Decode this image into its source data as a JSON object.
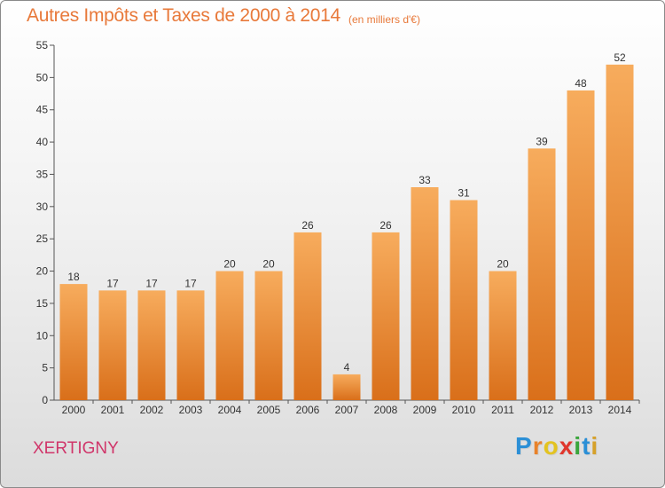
{
  "title": "Autres Impôts et Taxes de 2000 à 2014",
  "subtitle": "(en milliers d'€)",
  "commune": "XERTIGNY",
  "logo": {
    "letters": [
      "P",
      "r",
      "o",
      "x",
      "i",
      "t",
      "i"
    ],
    "colors": [
      "#2b8fd6",
      "#e8822a",
      "#e3c320",
      "#e0362c",
      "#3aa63c",
      "#2b8fd6",
      "#d6a12a"
    ]
  },
  "colors": {
    "bar_top": "#f7ac5d",
    "bar_bottom": "#d96f1a",
    "title": "#e8793a",
    "commune": "#d0366a"
  },
  "chart_data": {
    "type": "bar",
    "title": "Autres Impôts et Taxes de 2000 à 2014",
    "subtitle": "(en milliers d'€)",
    "categories": [
      "2000",
      "2001",
      "2002",
      "2003",
      "2004",
      "2005",
      "2006",
      "2007",
      "2008",
      "2009",
      "2010",
      "2011",
      "2012",
      "2013",
      "2014"
    ],
    "values": [
      18,
      17,
      17,
      17,
      20,
      20,
      26,
      4,
      26,
      33,
      31,
      20,
      39,
      48,
      52
    ],
    "ylim": [
      0,
      55
    ],
    "yticks": [
      0,
      5,
      10,
      15,
      20,
      25,
      30,
      35,
      40,
      45,
      50,
      55
    ],
    "grid": false,
    "data_labels": true
  }
}
